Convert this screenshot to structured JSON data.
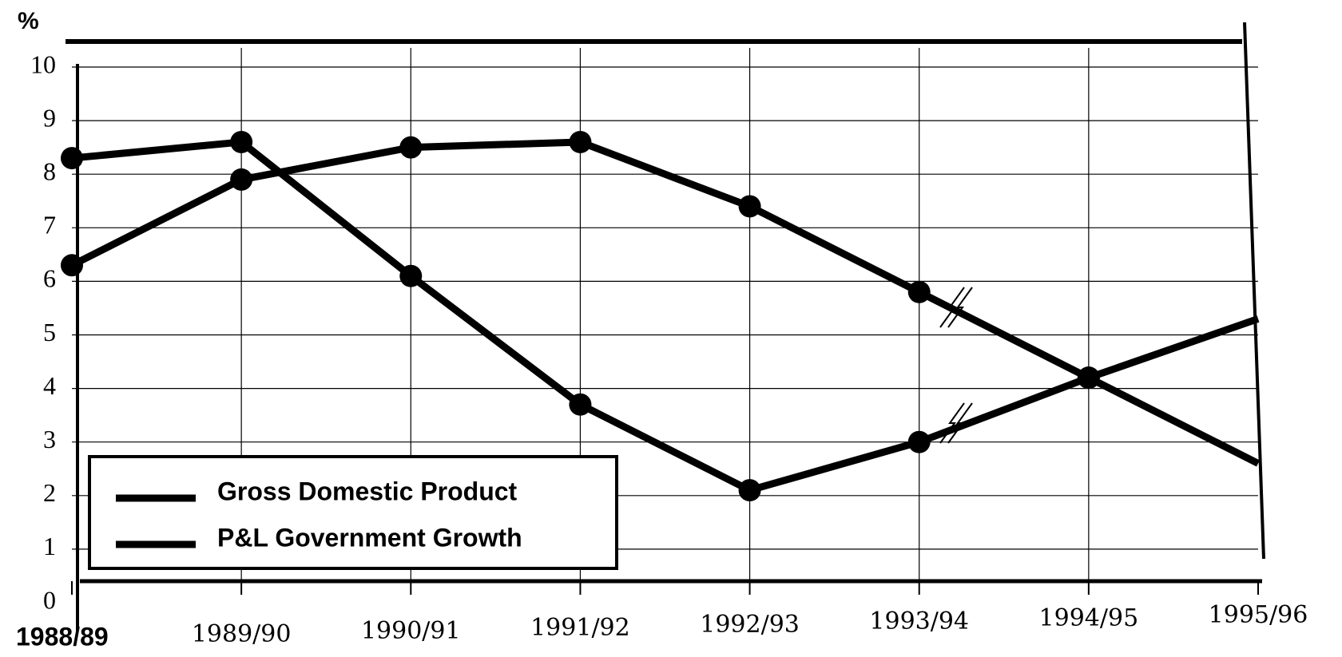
{
  "chart_data": {
    "type": "line",
    "y_label": "%",
    "categories": [
      "1988/89",
      "1989/90",
      "1990/91",
      "1991/92",
      "1992/93",
      "1993/94",
      "1994/95",
      "1995/96"
    ],
    "series": [
      {
        "name": "Gross Domestic Product",
        "color": "#000000",
        "values": [
          8.3,
          8.6,
          6.1,
          3.7,
          2.1,
          3.0,
          4.2,
          5.3
        ]
      },
      {
        "name": "P&L Government Growth",
        "color": "#000000",
        "values": [
          6.3,
          7.9,
          8.5,
          8.6,
          7.4,
          5.8,
          4.2,
          2.6
        ]
      }
    ],
    "ylim": [
      0,
      10
    ],
    "yticks": [
      0,
      1,
      2,
      3,
      4,
      5,
      6,
      7,
      8,
      9,
      10
    ],
    "grid": true
  }
}
